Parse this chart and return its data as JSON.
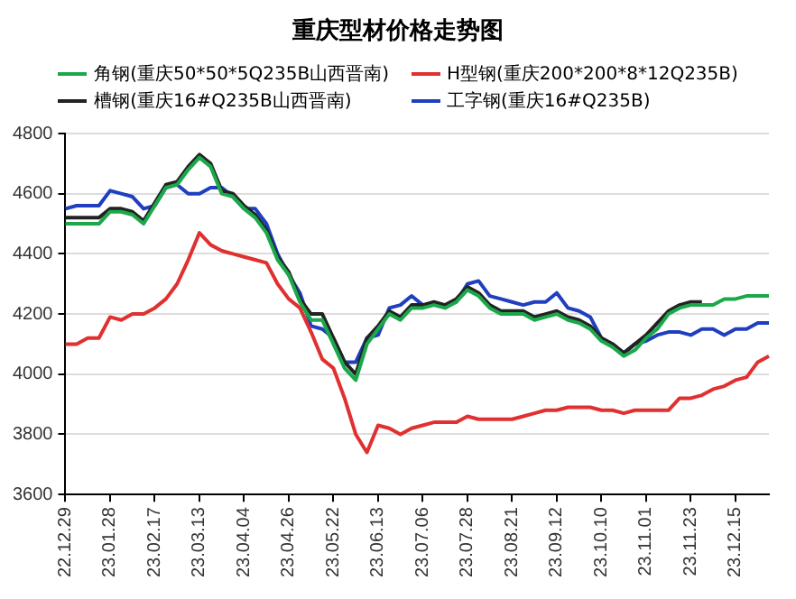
{
  "chart_data": {
    "type": "line",
    "title": "重庆型材价格走势图",
    "categories": [
      "22.12.29",
      null,
      null,
      null,
      "23.01.28",
      null,
      null,
      null,
      "23.02.17",
      null,
      null,
      null,
      "23.03.13",
      null,
      null,
      null,
      "23.04.04",
      null,
      null,
      null,
      "23.04.26",
      null,
      null,
      null,
      "23.05.22",
      null,
      null,
      null,
      "23.06.13",
      null,
      null,
      null,
      "23.07.06",
      null,
      null,
      null,
      "23.07.28",
      null,
      null,
      null,
      "23.08.21",
      null,
      null,
      null,
      "23.09.12",
      null,
      null,
      null,
      "23.10.10",
      null,
      null,
      null,
      "23.11.01",
      null,
      null,
      null,
      "23.11.23",
      null,
      null,
      null,
      "23.12.15",
      null,
      null,
      null
    ],
    "series": [
      {
        "name": "角钢(重庆50*50*5Q235B山西晋南)",
        "color": "#1aa84a",
        "values": [
          4500,
          4500,
          4500,
          4500,
          4540,
          4540,
          4530,
          4500,
          4560,
          4620,
          4630,
          4680,
          4720,
          4690,
          4600,
          4590,
          4550,
          4520,
          4470,
          4380,
          4330,
          4240,
          4180,
          4180,
          4100,
          4020,
          3980,
          4100,
          4150,
          4200,
          4180,
          4220,
          4220,
          4230,
          4220,
          4240,
          4280,
          4260,
          4220,
          4200,
          4200,
          4200,
          4180,
          4190,
          4200,
          4180,
          4170,
          4150,
          4110,
          4090,
          4060,
          4080,
          4120,
          4150,
          4200,
          4220,
          4230,
          4230,
          4230,
          4250,
          4250,
          4260,
          4260,
          4260
        ]
      },
      {
        "name": "H型钢(重庆200*200*8*12Q235B)",
        "color": "#e03030",
        "values": [
          4100,
          4100,
          4120,
          4120,
          4190,
          4180,
          4200,
          4200,
          4220,
          4250,
          4300,
          4380,
          4470,
          4430,
          4410,
          4400,
          4390,
          4380,
          4370,
          4300,
          4250,
          4220,
          4140,
          4050,
          4020,
          3920,
          3800,
          3740,
          3830,
          3820,
          3800,
          3820,
          3830,
          3840,
          3840,
          3840,
          3860,
          3850,
          3850,
          3850,
          3850,
          3860,
          3870,
          3880,
          3880,
          3890,
          3890,
          3890,
          3880,
          3880,
          3870,
          3880,
          3880,
          3880,
          3880,
          3920,
          3920,
          3930,
          3950,
          3960,
          3980,
          3990,
          4040,
          4060
        ]
      },
      {
        "name": "槽钢(重庆16#Q235B山西晋南)",
        "color": "#222222",
        "values": [
          4520,
          4520,
          4520,
          4520,
          4550,
          4550,
          4540,
          4510,
          4570,
          4630,
          4640,
          4690,
          4730,
          4700,
          4610,
          4600,
          4560,
          4530,
          4480,
          4390,
          4340,
          4250,
          4200,
          4200,
          4120,
          4040,
          4000,
          4120,
          4160,
          4210,
          4190,
          4230,
          4230,
          4240,
          4230,
          4250,
          4290,
          4270,
          4230,
          4210,
          4210,
          4210,
          4190,
          4200,
          4210,
          4190,
          4180,
          4160,
          4120,
          4100,
          4070,
          4100,
          4130,
          4170,
          4210,
          4230,
          4240,
          4240,
          null,
          null,
          null,
          null,
          null,
          null
        ]
      },
      {
        "name": "工字钢(重庆16#Q235B)",
        "color": "#1f3fbf",
        "values": [
          4550,
          4560,
          4560,
          4560,
          4610,
          4600,
          4590,
          4550,
          4560,
          4620,
          4630,
          4600,
          4600,
          4620,
          4620,
          4590,
          4550,
          4550,
          4500,
          4400,
          4330,
          4270,
          4160,
          4150,
          4120,
          4040,
          4040,
          4120,
          4130,
          4220,
          4230,
          4260,
          4230,
          4230,
          4230,
          4240,
          4300,
          4310,
          4260,
          4250,
          4240,
          4230,
          4240,
          4240,
          4270,
          4220,
          4210,
          4190,
          4120,
          4100,
          4070,
          4100,
          4110,
          4130,
          4140,
          4140,
          4130,
          4150,
          4150,
          4130,
          4150,
          4150,
          4170,
          4170
        ]
      }
    ],
    "ylim": [
      3600,
      4800
    ],
    "yticks": [
      3600,
      3800,
      4000,
      4200,
      4400,
      4600,
      4800
    ],
    "grid": "y",
    "legend": "top"
  }
}
